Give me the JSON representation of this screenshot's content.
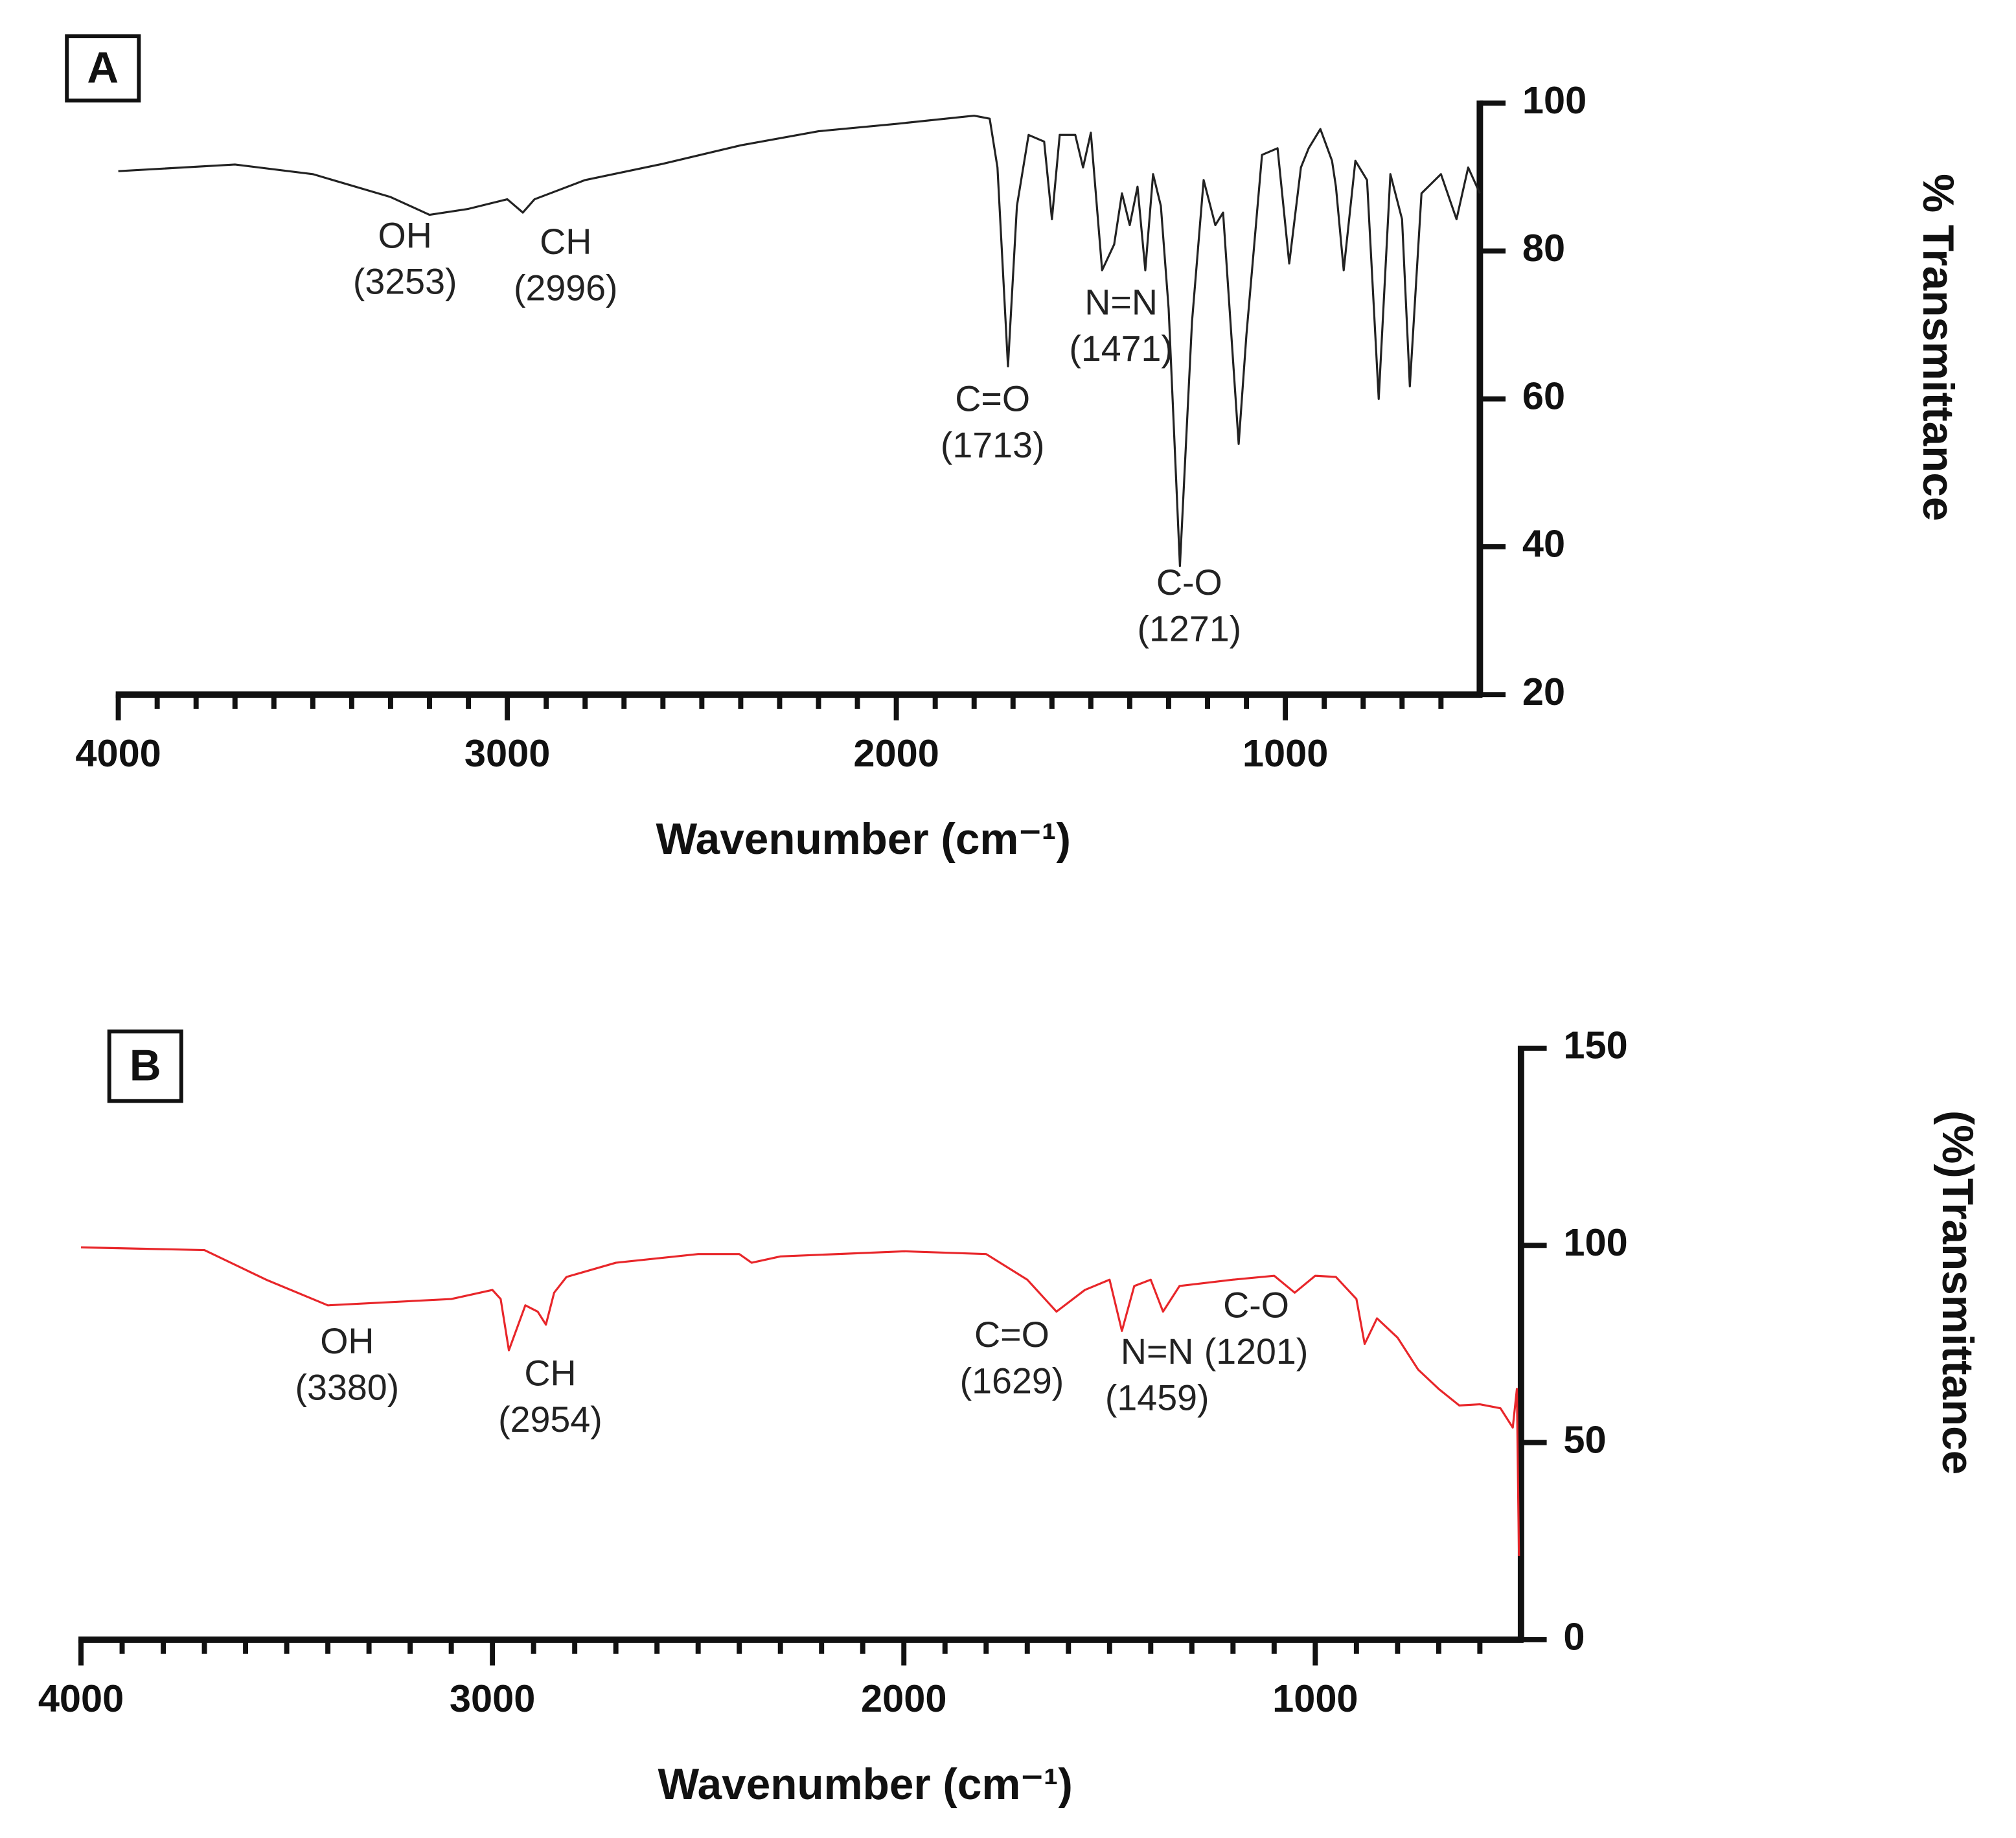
{
  "chart_data": [
    {
      "type": "line",
      "panel_label": "A",
      "xlabel": "Wavenumber (cm⁻¹)",
      "ylabel": "% Transmittance",
      "xlim": [
        4000,
        500
      ],
      "xticks": [
        4000,
        3000,
        2000,
        1000
      ],
      "xminorticks": [
        3900,
        3800,
        3700,
        3600,
        3500,
        3400,
        3300,
        3200,
        3100,
        2900,
        2800,
        2700,
        2600,
        2500,
        2400,
        2300,
        2200,
        2100,
        1900,
        1800,
        1700,
        1600,
        1500,
        1400,
        1300,
        1200,
        1100,
        900,
        800,
        700,
        600
      ],
      "ylim": [
        20,
        100
      ],
      "yticks": [
        20,
        40,
        60,
        80,
        100
      ],
      "color": "#222222",
      "x": [
        4000,
        3700,
        3500,
        3300,
        3200,
        3100,
        3000,
        2960,
        2930,
        2800,
        2600,
        2400,
        2200,
        2000,
        1800,
        1760,
        1740,
        1713,
        1690,
        1660,
        1620,
        1600,
        1580,
        1540,
        1520,
        1500,
        1471,
        1440,
        1420,
        1400,
        1380,
        1360,
        1340,
        1320,
        1300,
        1271,
        1240,
        1210,
        1180,
        1160,
        1120,
        1100,
        1060,
        1020,
        990,
        960,
        940,
        910,
        880,
        870,
        850,
        820,
        790,
        760,
        730,
        700,
        680,
        650,
        600,
        560,
        530,
        500
      ],
      "values": [
        90.8,
        91.7,
        90.4,
        87.3,
        84.9,
        85.7,
        87.0,
        85.2,
        87.0,
        89.6,
        91.8,
        94.3,
        96.2,
        97.2,
        98.3,
        97.9,
        91.3,
        64.4,
        86.1,
        95.7,
        94.8,
        84.3,
        95.7,
        95.7,
        91.3,
        96.0,
        77.4,
        80.9,
        87.8,
        83.5,
        88.7,
        77.4,
        90.4,
        86.1,
        72.2,
        37.4,
        70.4,
        89.6,
        83.5,
        85.2,
        53.9,
        68.7,
        93.0,
        93.9,
        78.3,
        91.3,
        93.9,
        96.5,
        92.2,
        88.7,
        77.4,
        92.2,
        89.6,
        60.0,
        90.4,
        84.3,
        61.7,
        87.8,
        90.4,
        84.3,
        91.3,
        87.8
      ],
      "annotations": [
        {
          "text": "OH",
          "label": "(3253)"
        },
        {
          "text": "CH",
          "label": "(2996)"
        },
        {
          "text": "N=N",
          "label": "(1471)"
        },
        {
          "text": "C=O",
          "label": "(1713)"
        },
        {
          "text": "C-O",
          "label": "(1271)"
        }
      ]
    },
    {
      "type": "line",
      "panel_label": "B",
      "xlabel": "Wavenumber (cm⁻¹)",
      "ylabel": "(%)Transmittance",
      "xlim": [
        4000,
        500
      ],
      "xticks": [
        4000,
        3000,
        2000,
        1000
      ],
      "xminorticks": [
        3900,
        3800,
        3700,
        3600,
        3500,
        3400,
        3300,
        3200,
        3100,
        2900,
        2800,
        2700,
        2600,
        2500,
        2400,
        2300,
        2200,
        2100,
        1900,
        1800,
        1700,
        1600,
        1500,
        1400,
        1300,
        1200,
        1100,
        900,
        800,
        700,
        600
      ],
      "ylim": [
        0,
        150
      ],
      "yticks": [
        0,
        50,
        100,
        150
      ],
      "color": "#e8262a",
      "x": [
        4000,
        3700,
        3550,
        3400,
        3100,
        3000,
        2980,
        2960,
        2920,
        2890,
        2870,
        2850,
        2820,
        2700,
        2500,
        2400,
        2370,
        2300,
        2000,
        1800,
        1700,
        1629,
        1560,
        1500,
        1470,
        1440,
        1400,
        1370,
        1330,
        1200,
        1100,
        1050,
        1000,
        950,
        900,
        880,
        850,
        800,
        750,
        700,
        650,
        600,
        550,
        520,
        510,
        505
      ],
      "values": [
        99.5,
        98.8,
        91.3,
        84.8,
        86.4,
        88.7,
        86.4,
        73.4,
        84.8,
        83.2,
        79.9,
        88.0,
        92.0,
        95.6,
        97.8,
        97.8,
        95.6,
        97.2,
        98.5,
        97.8,
        91.3,
        83.2,
        88.7,
        91.3,
        78.3,
        89.7,
        91.3,
        83.2,
        89.7,
        91.3,
        92.3,
        88.0,
        92.3,
        92.0,
        86.4,
        75.0,
        81.5,
        76.6,
        68.5,
        63.6,
        59.4,
        59.7,
        58.7,
        53.8,
        63.6,
        21.2
      ],
      "annotations": [
        {
          "text": "OH",
          "label": "(3380)"
        },
        {
          "text": "CH",
          "label": "(2954)"
        },
        {
          "text": "C=O",
          "label": "(1629)"
        },
        {
          "text": "N=N",
          "label": "(1459)"
        },
        {
          "text": "C-O",
          "label": "(1201)"
        }
      ]
    }
  ]
}
